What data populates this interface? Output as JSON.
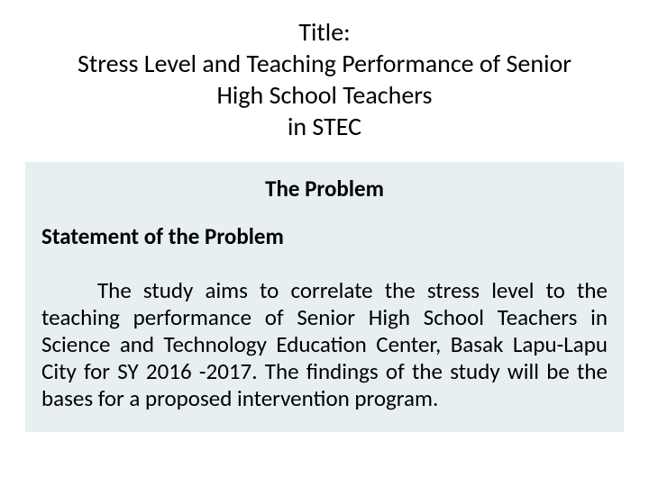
{
  "title": {
    "label": "Title:",
    "line1": "Stress Level and Teaching Performance of Senior",
    "line2": "High School Teachers",
    "line3": "in STEC"
  },
  "section": {
    "heading": "The Problem",
    "subheading": "Statement of the Problem",
    "body": "The study aims to correlate the stress level to the teaching performance of Senior High School Teachers in Science and Technology Education Center, Basak Lapu-Lapu City for SY 2016 -2017.  The findings of the study will be the bases for a proposed intervention program."
  },
  "colors": {
    "background": "#ffffff",
    "box_background": "#e7eff1",
    "text": "#000000"
  },
  "typography": {
    "title_fontsize": 28,
    "heading_fontsize": 25,
    "body_fontsize": 25,
    "font_family": "Calibri"
  }
}
